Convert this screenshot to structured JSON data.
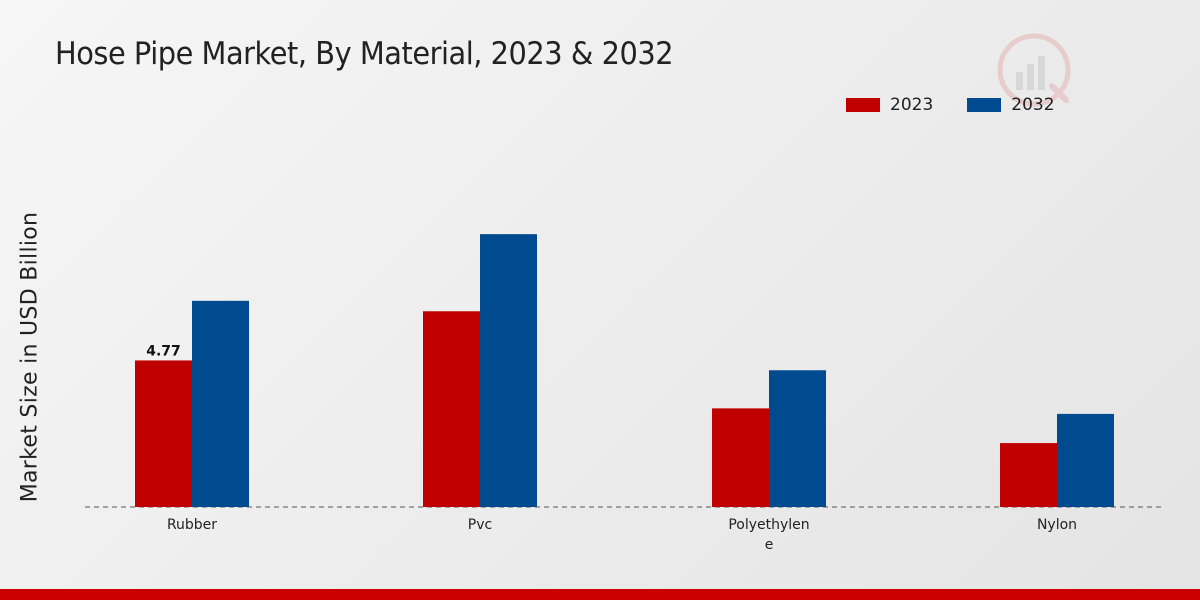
{
  "title": "Hose Pipe Market, By Material, 2023 & 2032",
  "colors": {
    "2023": "#c00000",
    "2032": "#004a8f",
    "bottom_bar": "#cc0000"
  },
  "chart_data": {
    "type": "bar",
    "title": "Hose Pipe Market, By Material, 2023 & 2032",
    "xlabel": "",
    "ylabel": "Market Size in USD Billion",
    "categories": [
      [
        "Rubber"
      ],
      [
        "Pvc"
      ],
      [
        "Polyethylen",
        "e"
      ],
      [
        "Nylon"
      ]
    ],
    "series": [
      {
        "name": "2023",
        "values": [
          4.77,
          6.37,
          3.21,
          2.08
        ],
        "color": "#c00000"
      },
      {
        "name": "2032",
        "values": [
          6.71,
          8.88,
          4.45,
          3.03
        ],
        "color": "#004a8f"
      }
    ],
    "data_labels": [
      {
        "series": "2023",
        "category_index": 0,
        "text": "4.77"
      }
    ],
    "ylim": [
      0,
      16.5
    ],
    "grid": false,
    "legend": "top-right"
  }
}
